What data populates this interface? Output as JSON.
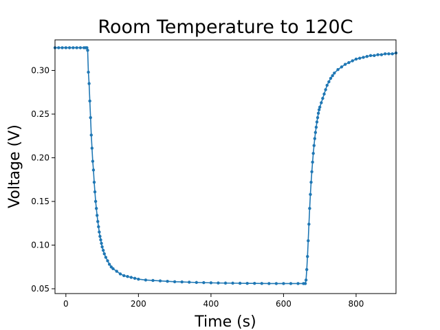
{
  "chart_data": {
    "type": "line",
    "title": "Room Temperature to 120C",
    "xlabel": "Time (s)",
    "ylabel": "Voltage (V)",
    "xlim": [
      -30,
      910
    ],
    "ylim": [
      0.0445,
      0.335
    ],
    "xticks": [
      0,
      200,
      400,
      600,
      800
    ],
    "yticks": [
      0.05,
      0.1,
      0.15,
      0.2,
      0.25,
      0.3
    ],
    "ytick_labels": [
      "0.05",
      "0.10",
      "0.15",
      "0.20",
      "0.25",
      "0.30"
    ],
    "grid": false,
    "legend": "none",
    "color": "#1f77b4",
    "series": [
      {
        "x": [
          -30,
          -20,
          -10,
          0,
          10,
          20,
          30,
          40,
          50,
          55,
          58,
          60,
          62,
          64,
          66,
          68,
          70,
          72,
          74,
          76,
          78,
          80,
          82,
          84,
          86,
          88,
          90,
          92,
          94,
          96,
          98,
          100,
          103,
          106,
          110,
          115,
          120,
          125,
          130,
          140,
          150,
          160,
          170,
          180,
          190,
          200,
          220,
          240,
          260,
          280,
          300,
          320,
          340,
          360,
          380,
          400,
          420,
          440,
          460,
          480,
          500,
          520,
          540,
          560,
          580,
          600,
          620,
          640,
          655,
          660,
          662,
          664,
          666,
          668,
          670,
          672,
          674,
          676,
          678,
          680,
          682,
          684,
          686,
          688,
          690,
          692,
          694,
          696,
          698,
          700,
          704,
          708,
          712,
          716,
          720,
          725,
          730,
          735,
          740,
          750,
          760,
          770,
          780,
          790,
          800,
          810,
          820,
          830,
          840,
          850,
          860,
          870,
          880,
          890,
          900,
          910
        ],
        "y": [
          0.326,
          0.326,
          0.326,
          0.326,
          0.326,
          0.326,
          0.326,
          0.326,
          0.326,
          0.326,
          0.326,
          0.323,
          0.298,
          0.285,
          0.265,
          0.246,
          0.226,
          0.211,
          0.196,
          0.186,
          0.172,
          0.161,
          0.15,
          0.142,
          0.134,
          0.127,
          0.121,
          0.115,
          0.11,
          0.106,
          0.102,
          0.098,
          0.094,
          0.09,
          0.086,
          0.082,
          0.078,
          0.075,
          0.073,
          0.07,
          0.067,
          0.065,
          0.064,
          0.063,
          0.062,
          0.061,
          0.06,
          0.0595,
          0.059,
          0.0585,
          0.058,
          0.0578,
          0.0575,
          0.0572,
          0.057,
          0.0568,
          0.0566,
          0.0565,
          0.0564,
          0.0563,
          0.0562,
          0.0562,
          0.0561,
          0.056,
          0.056,
          0.056,
          0.056,
          0.056,
          0.056,
          0.056,
          0.06,
          0.072,
          0.087,
          0.105,
          0.124,
          0.142,
          0.158,
          0.172,
          0.184,
          0.195,
          0.205,
          0.214,
          0.222,
          0.229,
          0.235,
          0.241,
          0.246,
          0.251,
          0.255,
          0.258,
          0.263,
          0.268,
          0.273,
          0.278,
          0.283,
          0.287,
          0.291,
          0.294,
          0.297,
          0.301,
          0.304,
          0.307,
          0.309,
          0.311,
          0.313,
          0.314,
          0.315,
          0.316,
          0.317,
          0.317,
          0.318,
          0.318,
          0.319,
          0.319,
          0.319,
          0.32
        ]
      }
    ]
  }
}
